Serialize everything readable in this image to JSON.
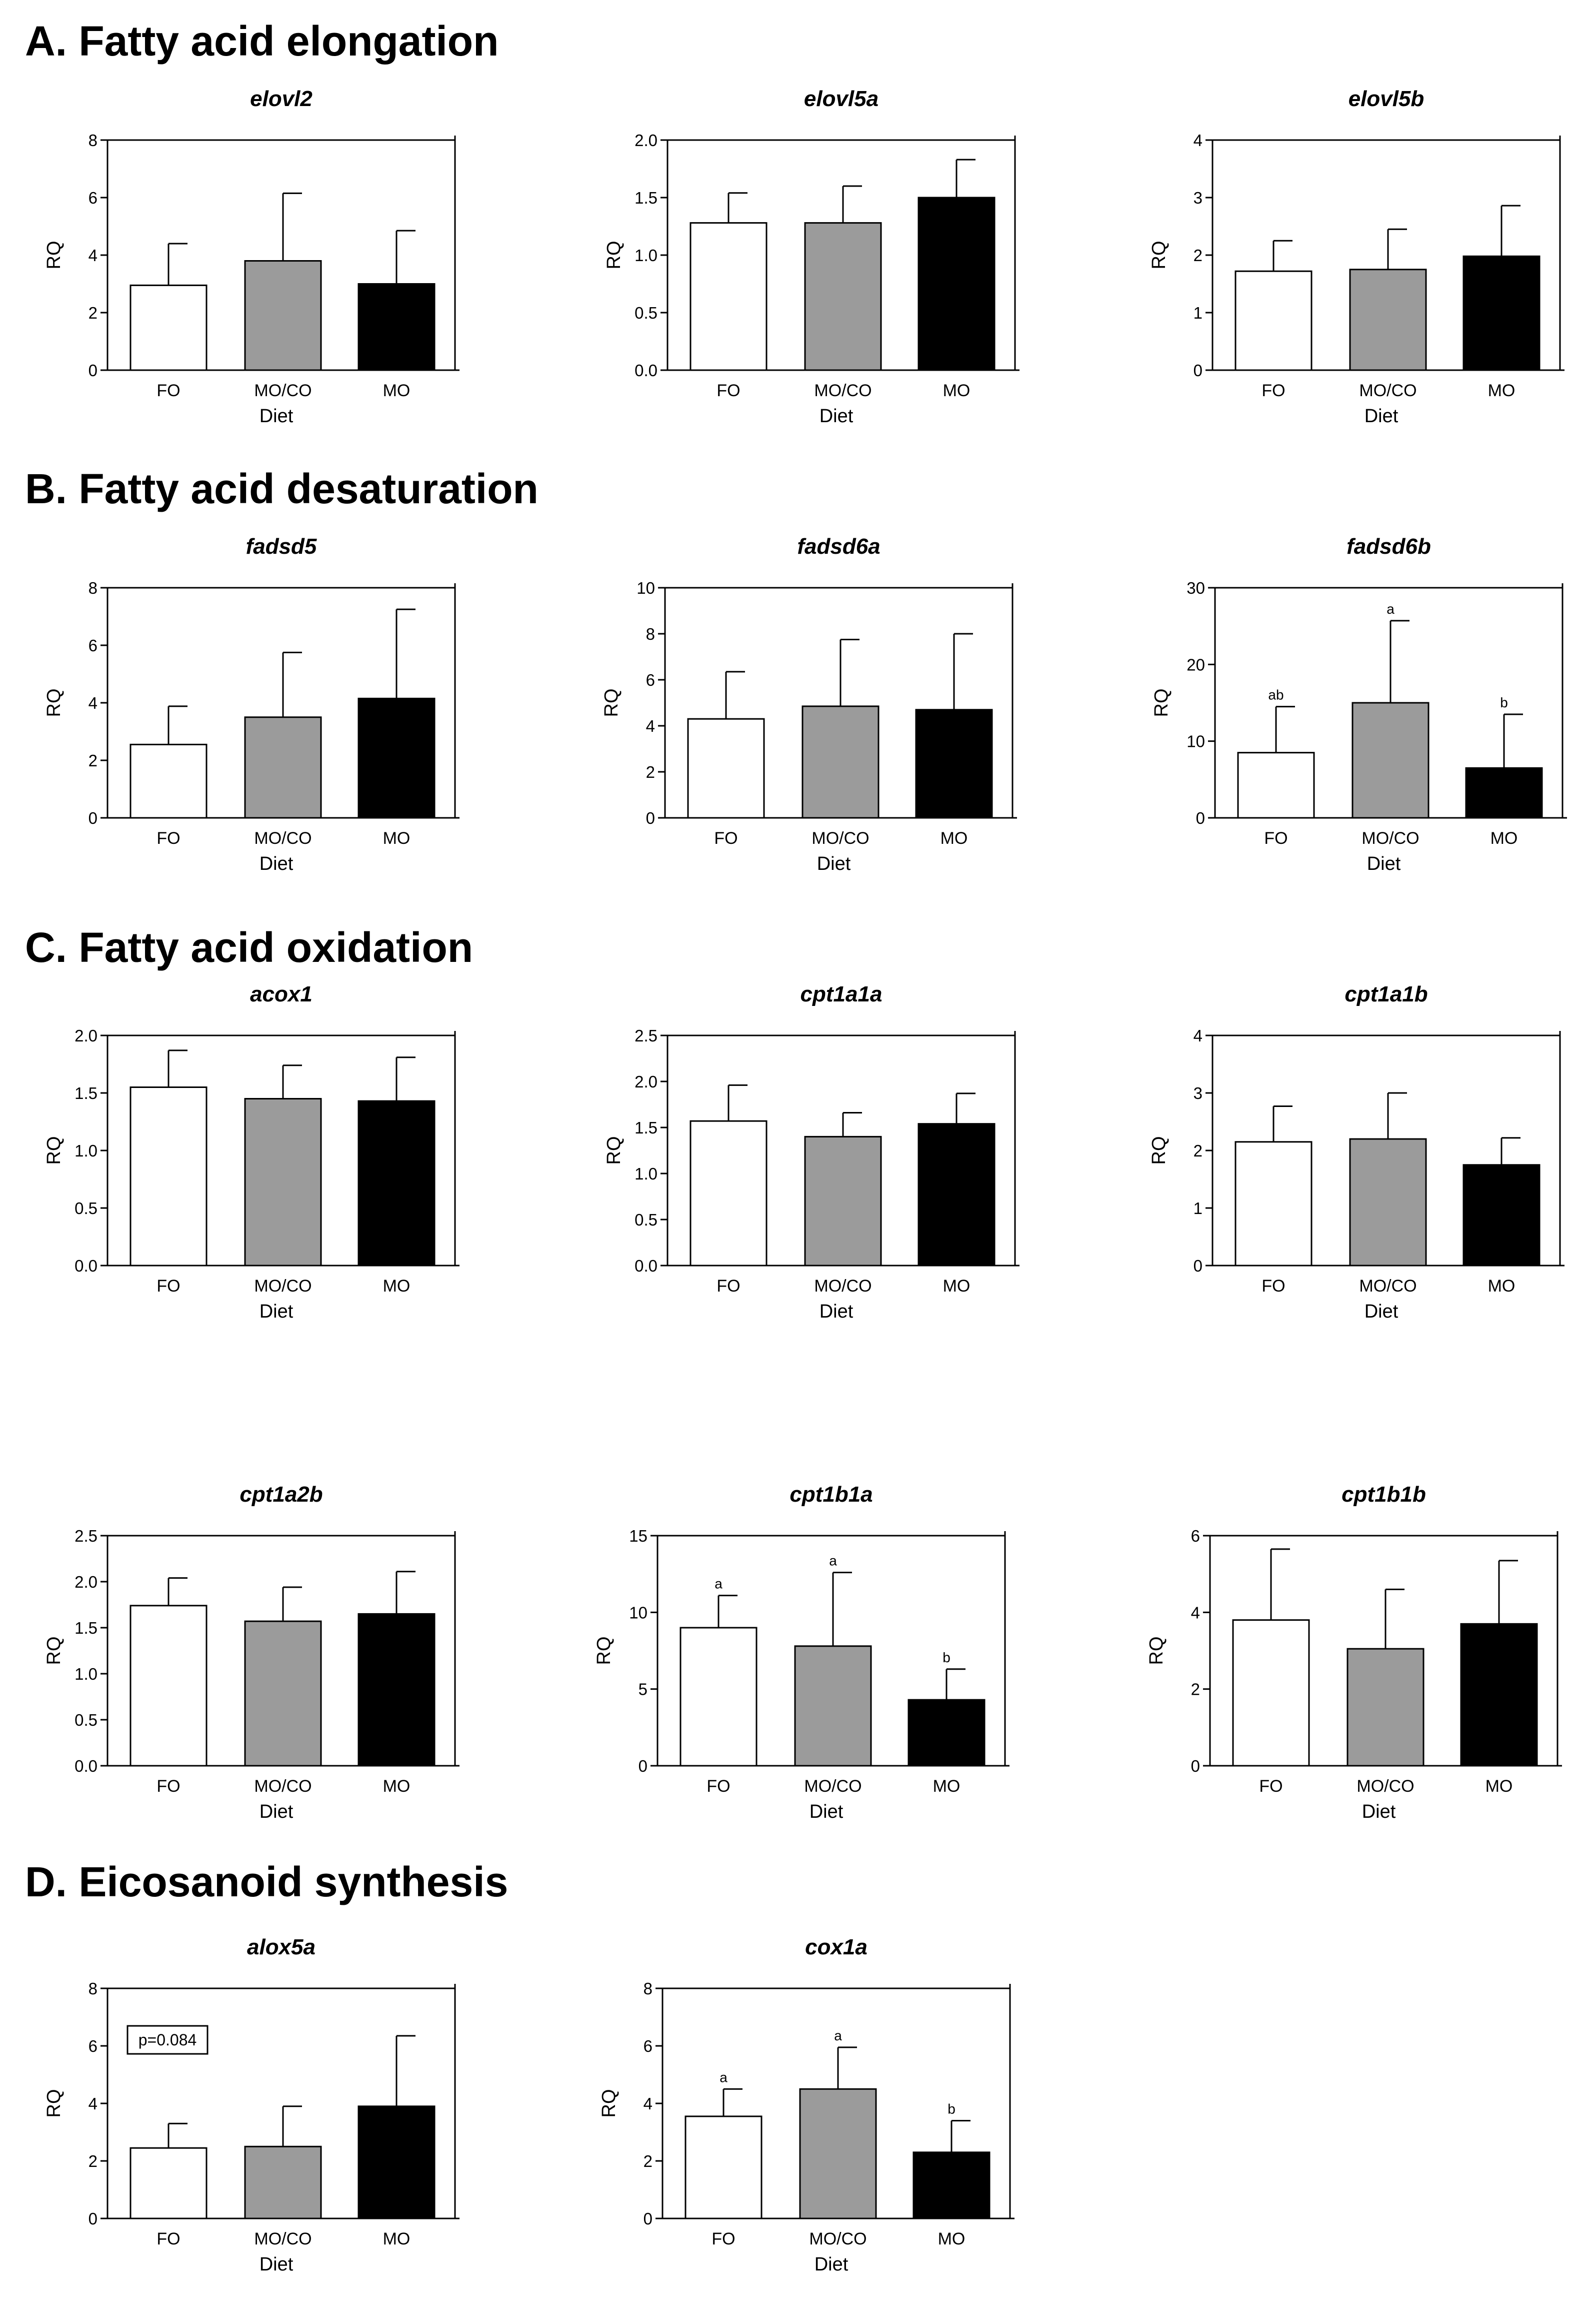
{
  "sections": {
    "a": "A. Fatty acid elongation",
    "b": "B. Fatty acid desaturation",
    "c": "C. Fatty acid oxidation",
    "d": "D. Eicosanoid synthesis"
  },
  "colors": {
    "FO": "#ffffff",
    "MO/CO": "#9b9b9b",
    "MO": "#000000"
  },
  "chart_data": [
    {
      "id": "elovl2",
      "type": "bar",
      "title": "elovl2",
      "categories": [
        "FO",
        "MO/CO",
        "MO"
      ],
      "values": [
        2.95,
        3.8,
        3.0
      ],
      "errors": [
        1.45,
        2.35,
        1.85
      ],
      "ylim": [
        0,
        8
      ],
      "yticks": [
        0,
        2,
        4,
        6,
        8
      ],
      "ytick_labels": [
        "0",
        "2",
        "4",
        "6",
        "8"
      ],
      "ylabel": "RQ",
      "xlabel": "Diet",
      "letters": [
        "",
        "",
        ""
      ],
      "annotation": ""
    },
    {
      "id": "elovl5a",
      "type": "bar",
      "title": "elovl5a",
      "categories": [
        "FO",
        "MO/CO",
        "MO"
      ],
      "values": [
        1.28,
        1.28,
        1.5
      ],
      "errors": [
        0.26,
        0.32,
        0.33
      ],
      "ylim": [
        0,
        2
      ],
      "yticks": [
        0,
        0.5,
        1,
        1.5,
        2
      ],
      "ytick_labels": [
        "0.0",
        "0.5",
        "1.0",
        "1.5",
        "2.0"
      ],
      "ylabel": "RQ",
      "xlabel": "Diet",
      "letters": [
        "",
        "",
        ""
      ],
      "annotation": ""
    },
    {
      "id": "elovl5b",
      "type": "bar",
      "title": "elovl5b",
      "categories": [
        "FO",
        "MO/CO",
        "MO"
      ],
      "values": [
        1.72,
        1.75,
        1.98
      ],
      "errors": [
        0.53,
        0.7,
        0.88
      ],
      "ylim": [
        0,
        4
      ],
      "yticks": [
        0,
        1,
        2,
        3,
        4
      ],
      "ytick_labels": [
        "0",
        "1",
        "2",
        "3",
        "4"
      ],
      "ylabel": "RQ",
      "xlabel": "Diet",
      "letters": [
        "",
        "",
        ""
      ],
      "annotation": ""
    },
    {
      "id": "fadsd5",
      "type": "bar",
      "title": "fadsd5",
      "categories": [
        "FO",
        "MO/CO",
        "MO"
      ],
      "values": [
        2.55,
        3.5,
        4.15
      ],
      "errors": [
        1.33,
        2.25,
        3.1
      ],
      "ylim": [
        0,
        8
      ],
      "yticks": [
        0,
        2,
        4,
        6,
        8
      ],
      "ytick_labels": [
        "0",
        "2",
        "4",
        "6",
        "8"
      ],
      "ylabel": "RQ",
      "xlabel": "Diet",
      "letters": [
        "",
        "",
        ""
      ],
      "annotation": ""
    },
    {
      "id": "fadsd6a",
      "type": "bar",
      "title": "fadsd6a",
      "categories": [
        "FO",
        "MO/CO",
        "MO"
      ],
      "values": [
        4.3,
        4.85,
        4.7
      ],
      "errors": [
        2.05,
        2.9,
        3.3
      ],
      "ylim": [
        0,
        10
      ],
      "yticks": [
        0,
        2,
        4,
        6,
        8,
        10
      ],
      "ytick_labels": [
        "0",
        "2",
        "4",
        "6",
        "8",
        "10"
      ],
      "ylabel": "RQ",
      "xlabel": "Diet",
      "letters": [
        "",
        "",
        ""
      ],
      "annotation": ""
    },
    {
      "id": "fadsd6b",
      "type": "bar",
      "title": "fadsd6b",
      "categories": [
        "FO",
        "MO/CO",
        "MO"
      ],
      "values": [
        8.5,
        15.0,
        6.5
      ],
      "errors": [
        6.0,
        10.7,
        7.0
      ],
      "ylim": [
        0,
        30
      ],
      "yticks": [
        0,
        10,
        20,
        30
      ],
      "ytick_labels": [
        "0",
        "10",
        "20",
        "30"
      ],
      "ylabel": "RQ",
      "xlabel": "Diet",
      "letters": [
        "ab",
        "a",
        "b"
      ],
      "annotation": ""
    },
    {
      "id": "acox1",
      "type": "bar",
      "title": "acox1",
      "categories": [
        "FO",
        "MO/CO",
        "MO"
      ],
      "values": [
        1.55,
        1.45,
        1.43
      ],
      "errors": [
        0.32,
        0.29,
        0.38
      ],
      "ylim": [
        0,
        2
      ],
      "yticks": [
        0,
        0.5,
        1,
        1.5,
        2
      ],
      "ytick_labels": [
        "0.0",
        "0.5",
        "1.0",
        "1.5",
        "2.0"
      ],
      "ylabel": "RQ",
      "xlabel": "Diet",
      "letters": [
        "",
        "",
        ""
      ],
      "annotation": ""
    },
    {
      "id": "cpt1a1a",
      "type": "bar",
      "title": "cpt1a1a",
      "categories": [
        "FO",
        "MO/CO",
        "MO"
      ],
      "values": [
        1.57,
        1.4,
        1.54
      ],
      "errors": [
        0.39,
        0.26,
        0.33
      ],
      "ylim": [
        0,
        2.5
      ],
      "yticks": [
        0,
        0.5,
        1,
        1.5,
        2,
        2.5
      ],
      "ytick_labels": [
        "0.0",
        "0.5",
        "1.0",
        "1.5",
        "2.0",
        "2.5"
      ],
      "ylabel": "RQ",
      "xlabel": "Diet",
      "letters": [
        "",
        "",
        ""
      ],
      "annotation": ""
    },
    {
      "id": "cpt1a1b",
      "type": "bar",
      "title": "cpt1a1b",
      "categories": [
        "FO",
        "MO/CO",
        "MO"
      ],
      "values": [
        2.15,
        2.2,
        1.75
      ],
      "errors": [
        0.62,
        0.8,
        0.47
      ],
      "ylim": [
        0,
        4
      ],
      "yticks": [
        0,
        1,
        2,
        3,
        4
      ],
      "ytick_labels": [
        "0",
        "1",
        "2",
        "3",
        "4"
      ],
      "ylabel": "RQ",
      "xlabel": "Diet",
      "letters": [
        "",
        "",
        ""
      ],
      "annotation": ""
    },
    {
      "id": "cpt1a2b",
      "type": "bar",
      "title": "cpt1a2b",
      "categories": [
        "FO",
        "MO/CO",
        "MO"
      ],
      "values": [
        1.74,
        1.57,
        1.65
      ],
      "errors": [
        0.3,
        0.37,
        0.46
      ],
      "ylim": [
        0,
        2.5
      ],
      "yticks": [
        0,
        0.5,
        1,
        1.5,
        2,
        2.5
      ],
      "ytick_labels": [
        "0.0",
        "0.5",
        "1.0",
        "1.5",
        "2.0",
        "2.5"
      ],
      "ylabel": "RQ",
      "xlabel": "Diet",
      "letters": [
        "",
        "",
        ""
      ],
      "annotation": ""
    },
    {
      "id": "cpt1b1a",
      "type": "bar",
      "title": "cpt1b1a",
      "categories": [
        "FO",
        "MO/CO",
        "MO"
      ],
      "values": [
        9.0,
        7.8,
        4.3
      ],
      "errors": [
        2.1,
        4.8,
        2.0
      ],
      "ylim": [
        0,
        15
      ],
      "yticks": [
        0,
        5,
        10,
        15
      ],
      "ytick_labels": [
        "0",
        "5",
        "10",
        "15"
      ],
      "ylabel": "RQ",
      "xlabel": "Diet",
      "letters": [
        "a",
        "a",
        "b"
      ],
      "annotation": ""
    },
    {
      "id": "cpt1b1b",
      "type": "bar",
      "title": "cpt1b1b",
      "categories": [
        "FO",
        "MO/CO",
        "MO"
      ],
      "values": [
        3.8,
        3.05,
        3.7
      ],
      "errors": [
        1.85,
        1.55,
        1.65
      ],
      "ylim": [
        0,
        6
      ],
      "yticks": [
        0,
        2,
        4,
        6
      ],
      "ytick_labels": [
        "0",
        "2",
        "4",
        "6"
      ],
      "ylabel": "RQ",
      "xlabel": "Diet",
      "letters": [
        "",
        "",
        ""
      ],
      "annotation": ""
    },
    {
      "id": "alox5a",
      "type": "bar",
      "title": "alox5a",
      "categories": [
        "FO",
        "MO/CO",
        "MO"
      ],
      "values": [
        2.45,
        2.5,
        3.9
      ],
      "errors": [
        0.85,
        1.4,
        2.45
      ],
      "ylim": [
        0,
        8
      ],
      "yticks": [
        0,
        2,
        4,
        6,
        8
      ],
      "ytick_labels": [
        "0",
        "2",
        "4",
        "6",
        "8"
      ],
      "ylabel": "RQ",
      "xlabel": "Diet",
      "letters": [
        "",
        "",
        ""
      ],
      "annotation": "p=0.084"
    },
    {
      "id": "cox1a",
      "type": "bar",
      "title": "cox1a",
      "categories": [
        "FO",
        "MO/CO",
        "MO"
      ],
      "values": [
        3.55,
        4.5,
        2.3
      ],
      "errors": [
        0.95,
        1.45,
        1.1
      ],
      "ylim": [
        0,
        8
      ],
      "yticks": [
        0,
        2,
        4,
        6,
        8
      ],
      "ytick_labels": [
        "0",
        "2",
        "4",
        "6",
        "8"
      ],
      "ylabel": "RQ",
      "xlabel": "Diet",
      "letters": [
        "a",
        "a",
        "b"
      ],
      "annotation": ""
    }
  ]
}
